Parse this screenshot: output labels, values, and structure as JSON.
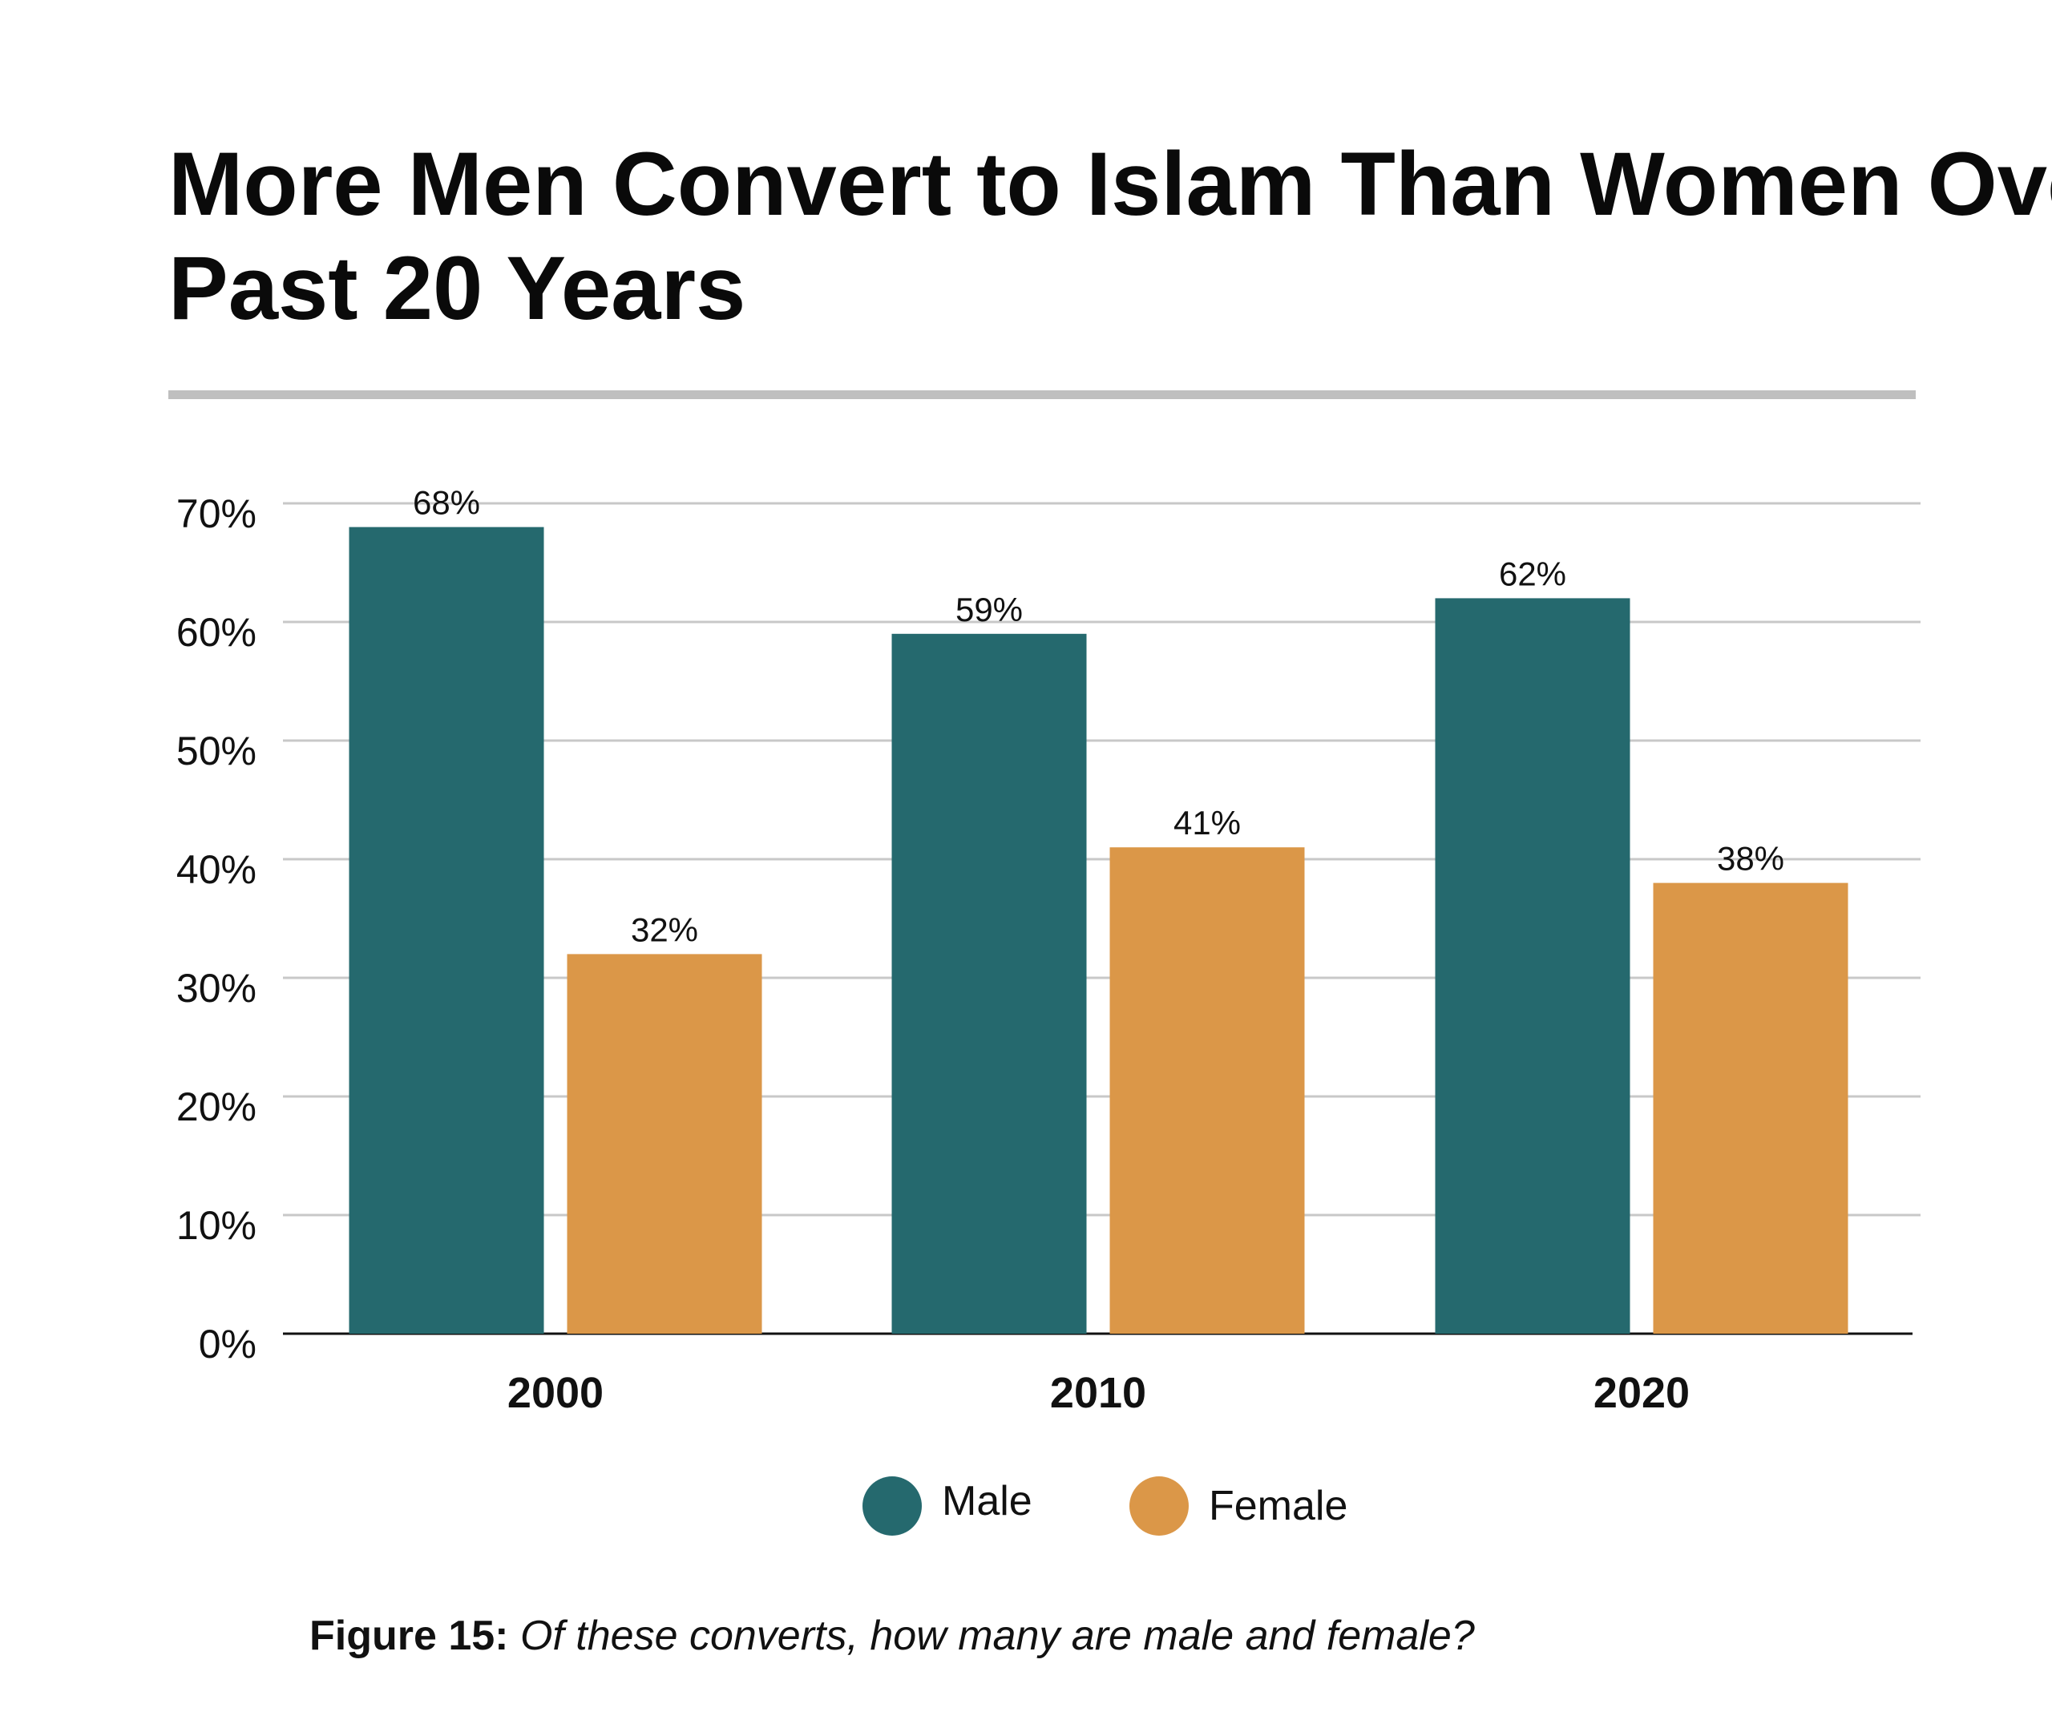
{
  "chart_data": {
    "type": "bar",
    "title_lines": [
      "More Men Convert to Islam Than Women Over",
      "Past 20 Years"
    ],
    "categories": [
      "2000",
      "2010",
      "2020"
    ],
    "series": [
      {
        "name": "Male",
        "values": [
          68,
          59,
          62
        ],
        "labels": [
          "68%",
          "59%",
          "62%"
        ],
        "color": "#25696E"
      },
      {
        "name": "Female",
        "values": [
          32,
          41,
          38
        ],
        "labels": [
          "32%",
          "41%",
          "38%"
        ],
        "color": "#DB9748"
      }
    ],
    "ylim": [
      0,
      70
    ],
    "yticks": [
      0,
      10,
      20,
      30,
      40,
      50,
      60,
      70
    ],
    "ytick_labels": [
      "0%",
      "10%",
      "20%",
      "30%",
      "40%",
      "50%",
      "60%",
      "70%"
    ],
    "grid": true,
    "legend_placement": "bottom",
    "caption": {
      "label": "Figure 15:",
      "text": " Of these converts, how many are male and female?"
    }
  }
}
